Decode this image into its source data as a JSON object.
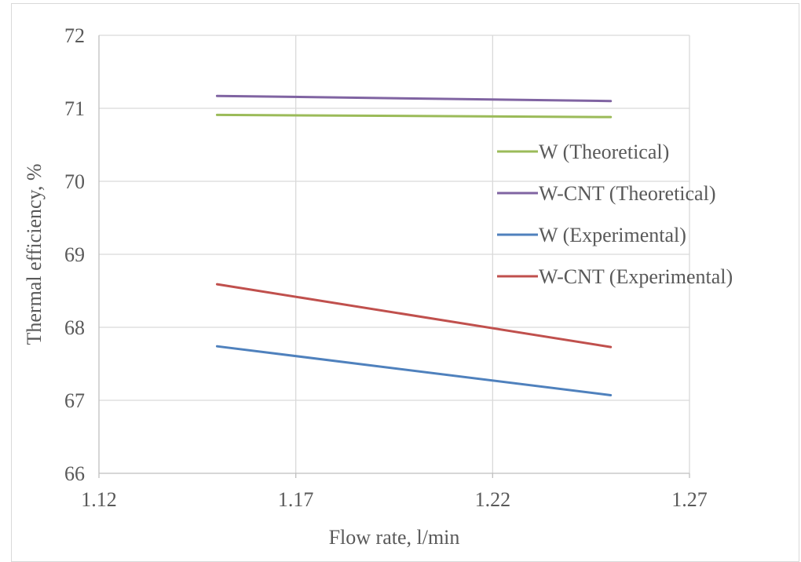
{
  "chart_data": {
    "type": "line",
    "title": "",
    "xlabel": "Flow rate, l/min",
    "ylabel": "Thermal efficiency, %",
    "xlim": [
      1.12,
      1.27
    ],
    "ylim": [
      66,
      72
    ],
    "xticks": [
      "1.12",
      "1.17",
      "1.22",
      "1.27"
    ],
    "yticks": [
      "66",
      "67",
      "68",
      "69",
      "70",
      "71",
      "72"
    ],
    "grid": true,
    "legend_position": "right",
    "series": [
      {
        "name": "W (Theoretical)",
        "color": "#9bbb59",
        "x": [
          1.15,
          1.25
        ],
        "y": [
          70.91,
          70.88
        ]
      },
      {
        "name": "W-CNT (Theoretical)",
        "color": "#8064a2",
        "x": [
          1.15,
          1.25
        ],
        "y": [
          71.17,
          71.1
        ]
      },
      {
        "name": "W (Experimental)",
        "color": "#4f81bd",
        "x": [
          1.15,
          1.25
        ],
        "y": [
          67.74,
          67.07
        ]
      },
      {
        "name": "W-CNT (Experimental)",
        "color": "#c0504d",
        "x": [
          1.15,
          1.25
        ],
        "y": [
          68.59,
          67.73
        ]
      }
    ]
  }
}
